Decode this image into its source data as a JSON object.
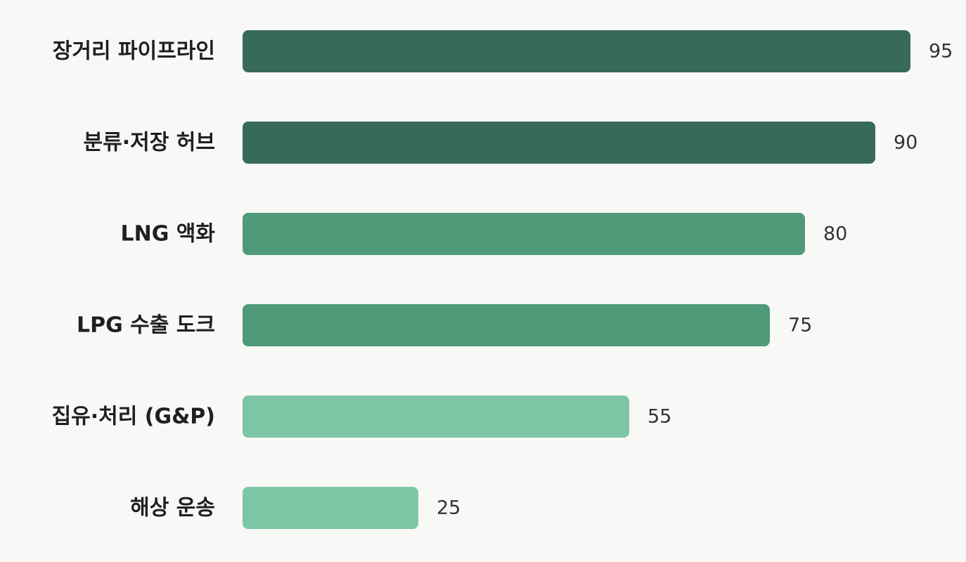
{
  "chart_data": {
    "type": "bar",
    "orientation": "horizontal",
    "categories": [
      "장거리 파이프라인",
      "분류·저장 허브",
      "LNG 액화",
      "LPG 수출 도크",
      "집유·처리 (G&P)",
      "해상 운송"
    ],
    "values": [
      95,
      90,
      80,
      75,
      55,
      25
    ],
    "value_labels": [
      "95",
      "90",
      "80",
      "75",
      "55",
      "25"
    ],
    "bar_colors": [
      "#376b58",
      "#376b58",
      "#4f9a79",
      "#4f9a79",
      "#7dc6a5",
      "#7dc6a5"
    ],
    "xlim": [
      0,
      100
    ],
    "grid": false,
    "legend": false,
    "title": "",
    "xlabel": "",
    "ylabel": ""
  }
}
